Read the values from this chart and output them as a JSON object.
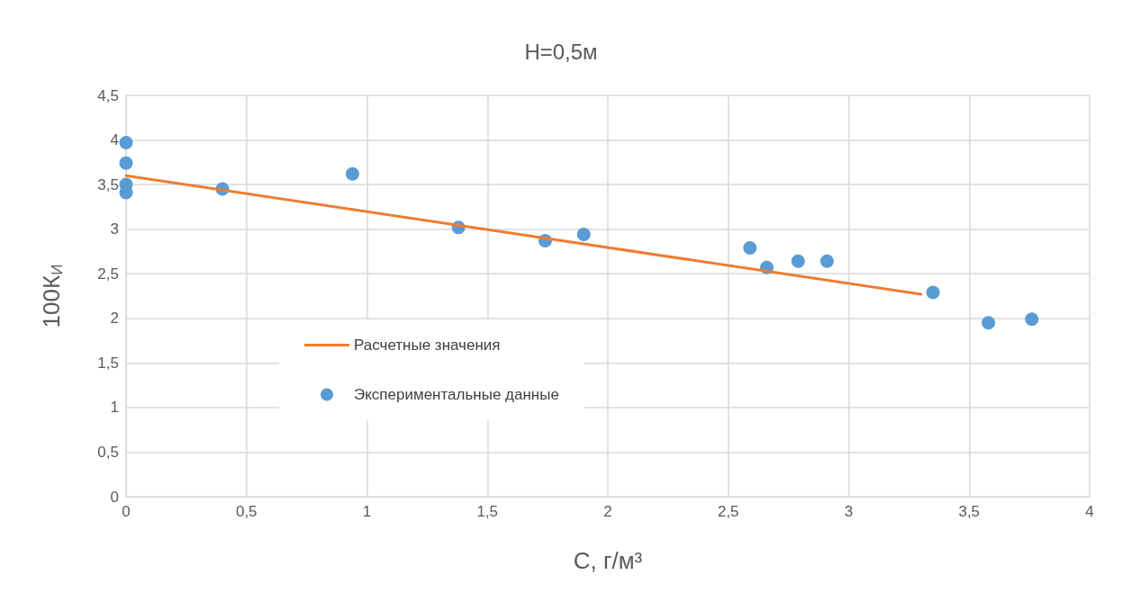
{
  "chart_data": {
    "type": "scatter",
    "title": "Н=0,5м",
    "xlabel": "С, г/м³",
    "ylabel": "100К$_{И}$",
    "xlim": [
      0,
      4
    ],
    "xticks": [
      0,
      {
        "value": 0.5,
        "label": "0,5"
      },
      1,
      {
        "value": 1.5,
        "label": "1,5"
      },
      2,
      {
        "value": 2.5,
        "label": "2,5"
      },
      3,
      {
        "value": 3.5,
        "label": "3,5"
      },
      4
    ],
    "ylim": [
      0,
      4.5
    ],
    "yticks": [
      0,
      {
        "value": 0.5,
        "label": "0,5"
      },
      1,
      {
        "value": 1.5,
        "label": "1,5"
      },
      2,
      {
        "value": 2.5,
        "label": "2,5"
      },
      3,
      {
        "value": 3.5,
        "label": "3,5"
      },
      4,
      {
        "value": 4.5,
        "label": "4,5"
      }
    ],
    "grid": true,
    "legend": "left",
    "marker": "circle",
    "series": [
      {
        "name": "Расчетные значения",
        "type": "line",
        "color": "#ed7d31",
        "line_style": "solid",
        "marker": "none",
        "x": [
          0,
          3.3
        ],
        "values": [
          3.6,
          2.27
        ]
      },
      {
        "name": "Экспериментальные данные",
        "color": "#5b9bd5",
        "x": [
          0,
          0,
          0,
          0,
          0.4,
          0.94,
          1.38,
          1.74,
          1.9,
          2.59,
          2.66,
          2.79,
          2.91,
          3.35,
          3.58,
          3.76
        ],
        "values": [
          3.97,
          3.74,
          3.5,
          3.41,
          3.45,
          3.62,
          3.02,
          2.87,
          2.94,
          2.79,
          2.57,
          2.64,
          2.64,
          2.29,
          1.95,
          1.99
        ]
      }
    ]
  }
}
